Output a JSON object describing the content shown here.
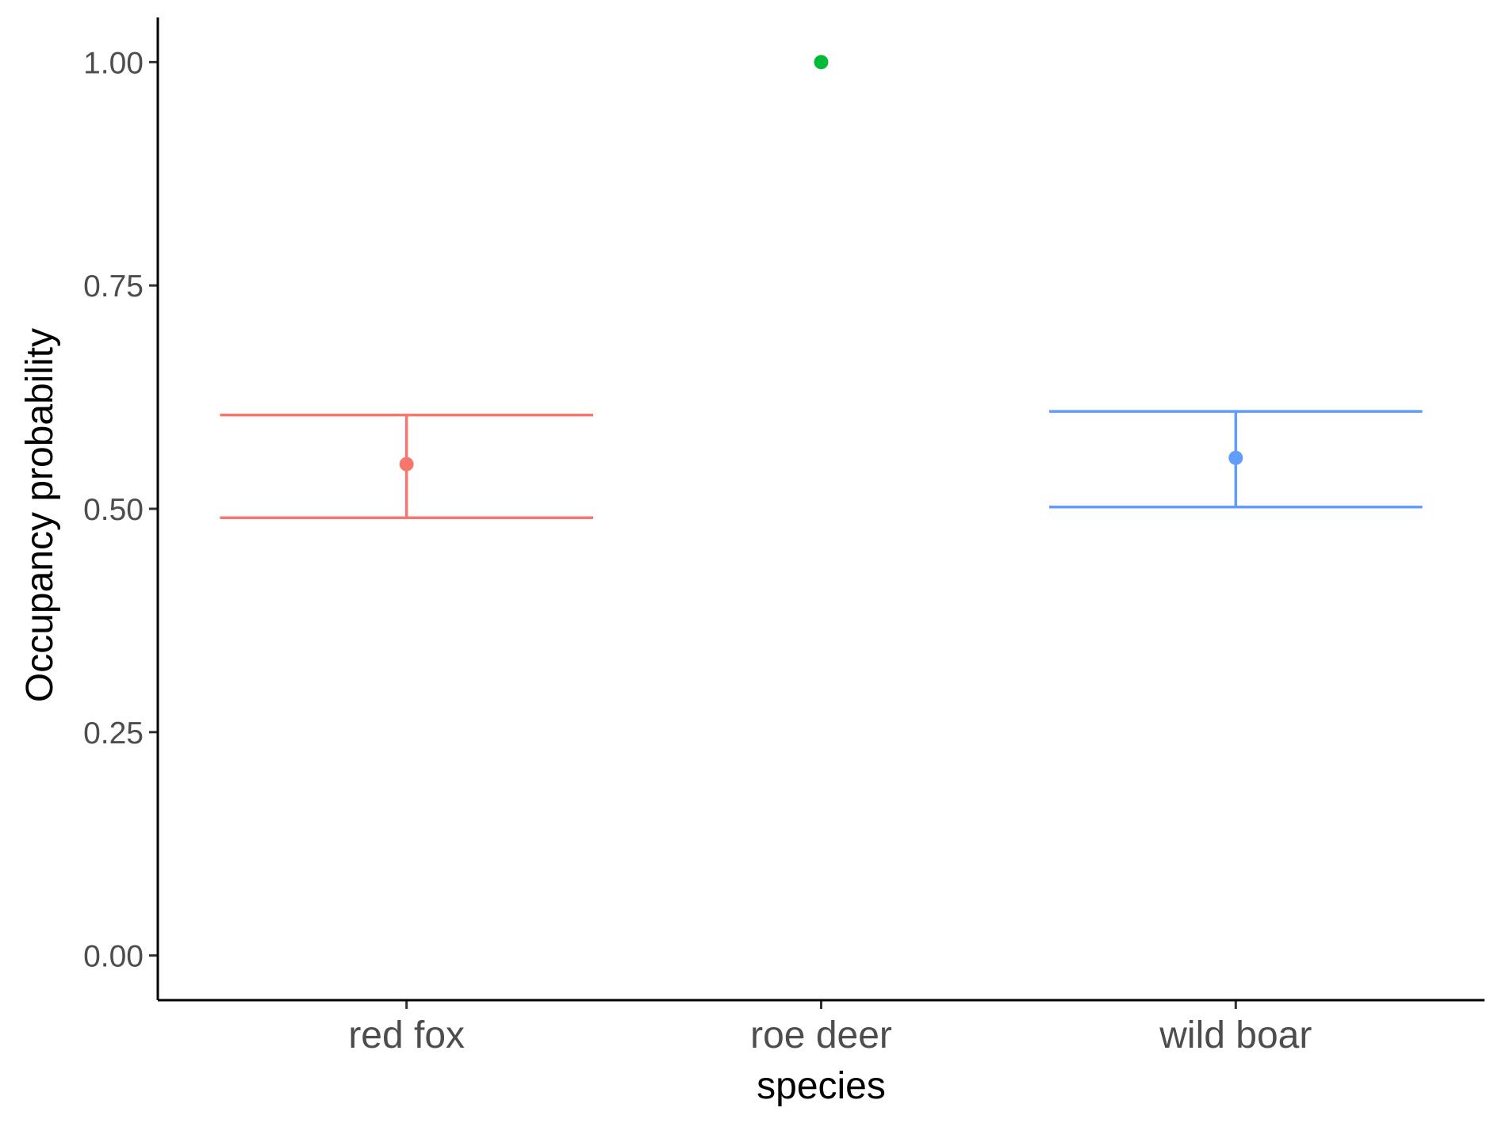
{
  "chart_data": {
    "type": "scatter",
    "title": "",
    "xlabel": "species",
    "ylabel": "Occupancy probability",
    "categories": [
      "red fox",
      "roe deer",
      "wild boar"
    ],
    "estimates": [
      {
        "category": "red fox",
        "value": 0.55,
        "lower": 0.49,
        "upper": 0.605,
        "color": "#F8766D"
      },
      {
        "category": "roe deer",
        "value": 1.0,
        "lower": null,
        "upper": null,
        "color": "#00BA38"
      },
      {
        "category": "wild boar",
        "value": 0.557,
        "lower": 0.502,
        "upper": 0.609,
        "color": "#619CFF"
      }
    ],
    "ylim": [
      -0.05,
      1.05
    ],
    "yticks": [
      0.0,
      0.25,
      0.5,
      0.75,
      1.0
    ],
    "ytick_labels": [
      "0.00",
      "0.25",
      "0.50",
      "0.75",
      "1.00"
    ],
    "grid": false,
    "legend": "none"
  }
}
